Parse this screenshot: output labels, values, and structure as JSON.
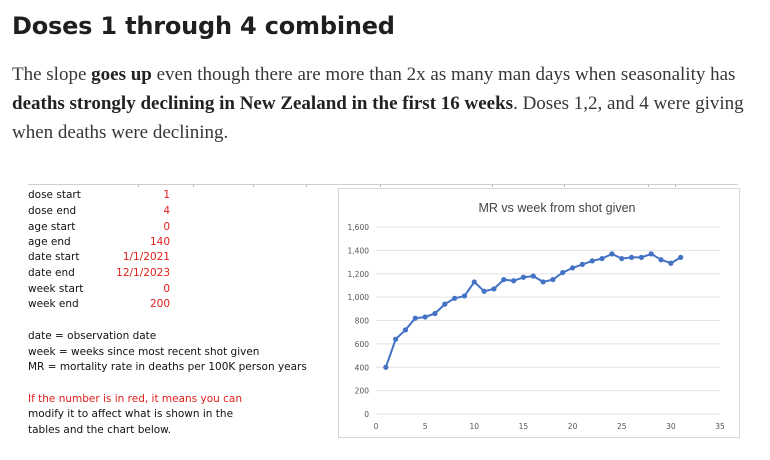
{
  "article": {
    "heading": "Doses 1 through 4 combined",
    "paragraph": {
      "p1": "The slope ",
      "b1": "goes up",
      "p2": " even though there are more than 2x as many man days when seasonality has ",
      "b2": "deaths strongly declining in New Zealand in the first 16 weeks",
      "p3": ". Doses 1,2, and 4 were giving when deaths were declining."
    }
  },
  "params": [
    {
      "label": "dose start",
      "value": "1"
    },
    {
      "label": "dose end",
      "value": "4"
    },
    {
      "label": "age start",
      "value": "0"
    },
    {
      "label": "age end",
      "value": "140"
    },
    {
      "label": "date start",
      "value": "1/1/2021"
    },
    {
      "label": "date end",
      "value": "12/1/2023"
    },
    {
      "label": "week start",
      "value": "0"
    },
    {
      "label": "week end",
      "value": "200"
    }
  ],
  "definitions": [
    "date = observation date",
    "week = weeks since most recent shot given",
    "MR = mortality rate in deaths per 100K person years"
  ],
  "red_note": [
    "If the number is in red, it means you can",
    "modify it to affect what is shown in the",
    "tables and the chart below."
  ],
  "colors": {
    "accent_red": "#e0201c",
    "series_blue": "#4472c4"
  },
  "chart_data": {
    "type": "line",
    "title": "MR vs week from shot given",
    "xlabel": "",
    "ylabel": "",
    "xlim": [
      0,
      35
    ],
    "ylim": [
      0,
      1600
    ],
    "x_ticks": [
      0,
      5,
      10,
      15,
      20,
      25,
      30,
      35
    ],
    "y_ticks": [
      0,
      200,
      400,
      600,
      800,
      1000,
      1200,
      1400,
      1600
    ],
    "y_tick_labels": [
      "0",
      "200",
      "400",
      "600",
      "800",
      "1,000",
      "1,200",
      "1,400",
      "1,600"
    ],
    "grid": "horizontal",
    "series": [
      {
        "name": "MR",
        "x": [
          1,
          2,
          3,
          4,
          5,
          6,
          7,
          8,
          9,
          10,
          11,
          12,
          13,
          14,
          15,
          16,
          17,
          18,
          19,
          20,
          21,
          22,
          23,
          24,
          25,
          26,
          27,
          28,
          29,
          30,
          31
        ],
        "values": [
          400,
          640,
          720,
          820,
          830,
          860,
          940,
          990,
          1010,
          1130,
          1050,
          1070,
          1150,
          1140,
          1170,
          1180,
          1130,
          1150,
          1210,
          1250,
          1280,
          1310,
          1330,
          1370,
          1330,
          1340,
          1340,
          1370,
          1320,
          1290,
          1340
        ]
      }
    ]
  }
}
